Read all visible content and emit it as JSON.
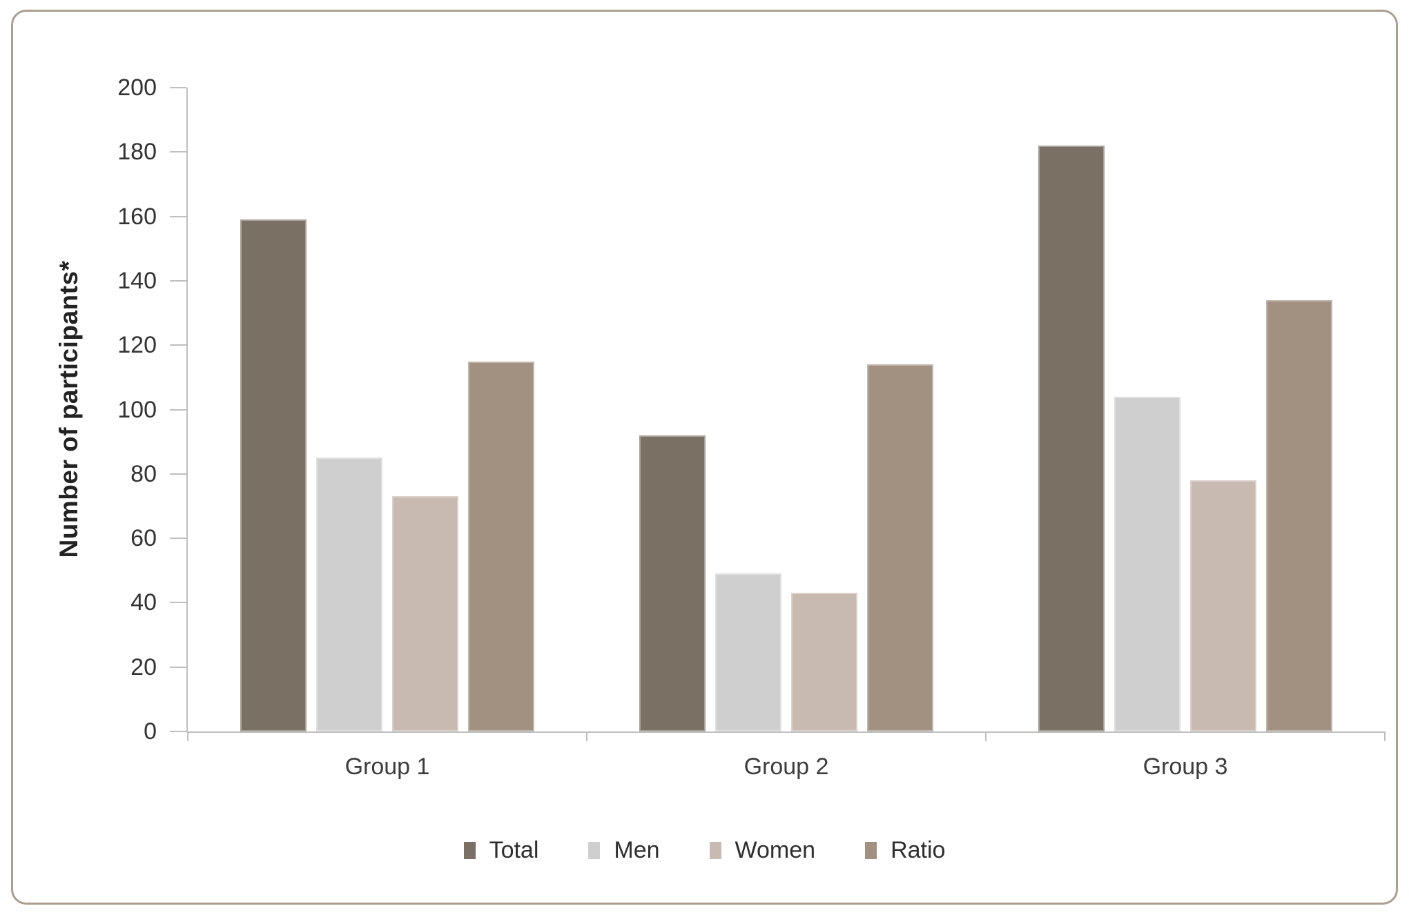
{
  "chart_data": {
    "type": "bar",
    "title": "",
    "xlabel": "",
    "ylabel": "Number of participants*",
    "ylim": [
      0,
      200
    ],
    "yticks": [
      0,
      20,
      40,
      60,
      80,
      100,
      120,
      140,
      160,
      180,
      200
    ],
    "grid": false,
    "legend_position": "bottom",
    "categories": [
      "Group 1",
      "Group 2",
      "Group 3"
    ],
    "series": [
      {
        "name": "Total",
        "color": "#7b7064",
        "values": [
          159,
          92,
          182
        ]
      },
      {
        "name": "Men",
        "color": "#cfcfcf",
        "values": [
          85,
          49,
          104
        ]
      },
      {
        "name": "Women",
        "color": "#c8bab0",
        "values": [
          73,
          43,
          78
        ]
      },
      {
        "name": "Ratio",
        "color": "#a29180",
        "values": [
          115,
          114,
          134
        ]
      }
    ]
  },
  "colors": {
    "card_border": "#ab9e8f",
    "axis_line": "#bfbfbf",
    "tick_text": "#333333",
    "category_text": "#3d3d3d",
    "legend_text": "#2e2e2e",
    "axis_title_text": "#222222",
    "background": "#ffffff"
  }
}
